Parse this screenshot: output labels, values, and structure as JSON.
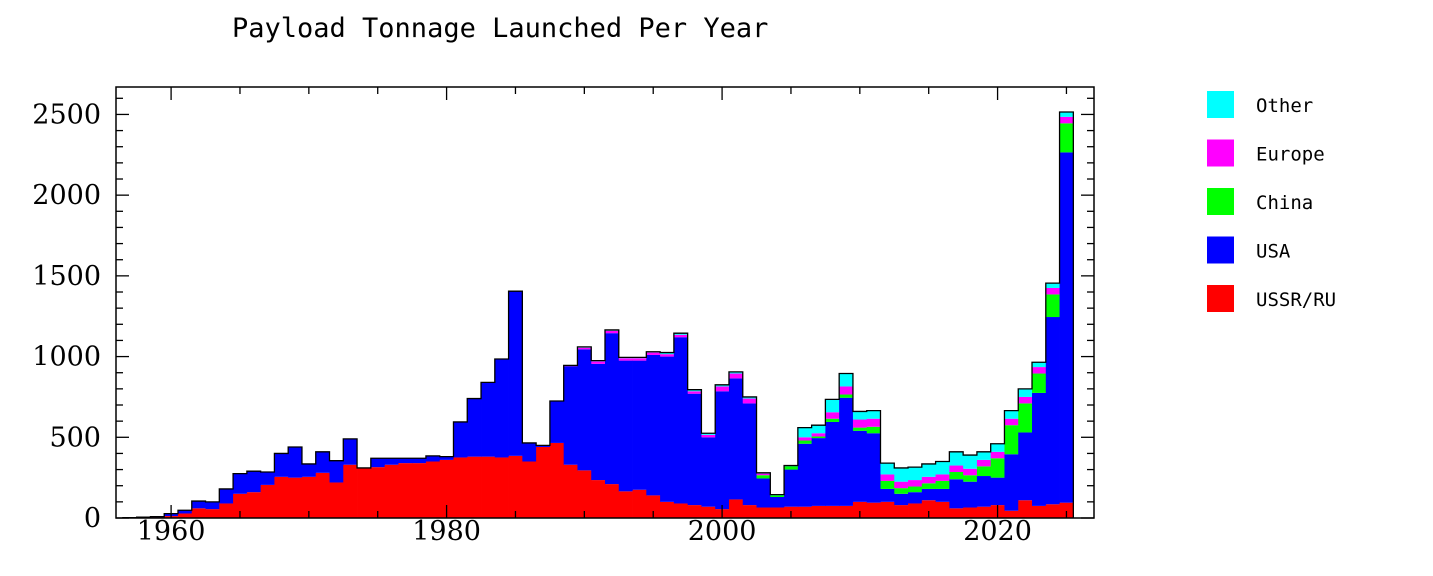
{
  "chart_data": {
    "type": "bar",
    "stacked": true,
    "title": "Payload Tonnage Launched Per Year",
    "xlabel": "",
    "ylabel": "",
    "xlim": [
      1956,
      2027
    ],
    "ylim": [
      0,
      2670
    ],
    "x_ticks": [
      1960,
      1980,
      2000,
      2020
    ],
    "y_ticks": [
      0,
      500,
      1000,
      1500,
      2000,
      2500
    ],
    "grid": false,
    "legend_position": "right",
    "years": [
      1957,
      1958,
      1959,
      1960,
      1961,
      1962,
      1963,
      1964,
      1965,
      1966,
      1967,
      1968,
      1969,
      1970,
      1971,
      1972,
      1973,
      1974,
      1975,
      1976,
      1977,
      1978,
      1979,
      1980,
      1981,
      1982,
      1983,
      1984,
      1985,
      1986,
      1987,
      1988,
      1989,
      1990,
      1991,
      1992,
      1993,
      1994,
      1995,
      1996,
      1997,
      1998,
      1999,
      2000,
      2001,
      2002,
      2003,
      2004,
      2005,
      2006,
      2007,
      2008,
      2009,
      2010,
      2011,
      2012,
      2013,
      2014,
      2015,
      2016,
      2017,
      2018,
      2019,
      2020,
      2021,
      2022,
      2023,
      2024,
      2025
    ],
    "series": [
      {
        "name": "USSR/RU",
        "color": "#ff0000",
        "values": [
          2,
          3,
          5,
          12,
          28,
          60,
          55,
          90,
          150,
          160,
          205,
          255,
          250,
          255,
          280,
          220,
          330,
          310,
          315,
          330,
          340,
          340,
          350,
          360,
          375,
          380,
          380,
          375,
          385,
          350,
          440,
          465,
          330,
          295,
          235,
          210,
          165,
          175,
          140,
          100,
          90,
          80,
          70,
          55,
          115,
          80,
          65,
          65,
          70,
          70,
          75,
          75,
          75,
          100,
          95,
          100,
          80,
          90,
          110,
          100,
          60,
          65,
          70,
          80,
          45,
          110,
          75,
          85,
          95
        ]
      },
      {
        "name": "USA",
        "color": "#0000ff",
        "values": [
          0,
          2,
          3,
          15,
          20,
          45,
          45,
          90,
          125,
          130,
          80,
          145,
          190,
          80,
          130,
          135,
          160,
          0,
          55,
          40,
          30,
          30,
          35,
          20,
          220,
          360,
          460,
          610,
          1020,
          115,
          10,
          260,
          610,
          750,
          720,
          935,
          810,
          800,
          870,
          900,
          1030,
          690,
          430,
          730,
          750,
          630,
          180,
          65,
          230,
          390,
          420,
          520,
          670,
          440,
          430,
          80,
          70,
          70,
          70,
          80,
          180,
          160,
          190,
          170,
          350,
          420,
          700,
          1160,
          2170
        ]
      },
      {
        "name": "China",
        "color": "#00ff00",
        "values": [
          0,
          0,
          0,
          0,
          0,
          0,
          0,
          0,
          0,
          0,
          0,
          0,
          0,
          0,
          0,
          0,
          0,
          0,
          0,
          0,
          0,
          0,
          0,
          0,
          0,
          0,
          0,
          0,
          0,
          0,
          0,
          0,
          0,
          0,
          0,
          0,
          0,
          0,
          0,
          0,
          0,
          0,
          0,
          0,
          0,
          0,
          20,
          10,
          20,
          20,
          10,
          20,
          20,
          20,
          40,
          50,
          35,
          35,
          35,
          50,
          45,
          40,
          60,
          120,
          180,
          180,
          120,
          140,
          180
        ]
      },
      {
        "name": "Europe",
        "color": "#ff00ff",
        "values": [
          0,
          0,
          0,
          0,
          0,
          0,
          0,
          0,
          0,
          0,
          0,
          0,
          0,
          0,
          0,
          0,
          0,
          0,
          0,
          0,
          0,
          0,
          0,
          0,
          0,
          0,
          0,
          0,
          0,
          0,
          0,
          0,
          5,
          10,
          15,
          15,
          15,
          15,
          15,
          15,
          15,
          15,
          15,
          30,
          30,
          30,
          10,
          0,
          0,
          20,
          20,
          40,
          50,
          50,
          50,
          40,
          40,
          40,
          40,
          40,
          40,
          40,
          40,
          40,
          40,
          40,
          40,
          40,
          40
        ]
      },
      {
        "name": "Other",
        "color": "#00ffff",
        "values": [
          0,
          0,
          0,
          0,
          0,
          0,
          0,
          0,
          0,
          0,
          0,
          0,
          0,
          0,
          0,
          0,
          0,
          0,
          0,
          0,
          0,
          0,
          0,
          0,
          0,
          0,
          0,
          0,
          0,
          0,
          0,
          0,
          0,
          5,
          5,
          5,
          5,
          5,
          5,
          10,
          10,
          10,
          10,
          10,
          10,
          10,
          5,
          5,
          5,
          60,
          50,
          80,
          80,
          50,
          50,
          70,
          85,
          80,
          80,
          80,
          85,
          85,
          50,
          50,
          50,
          50,
          30,
          30,
          30
        ]
      }
    ]
  }
}
